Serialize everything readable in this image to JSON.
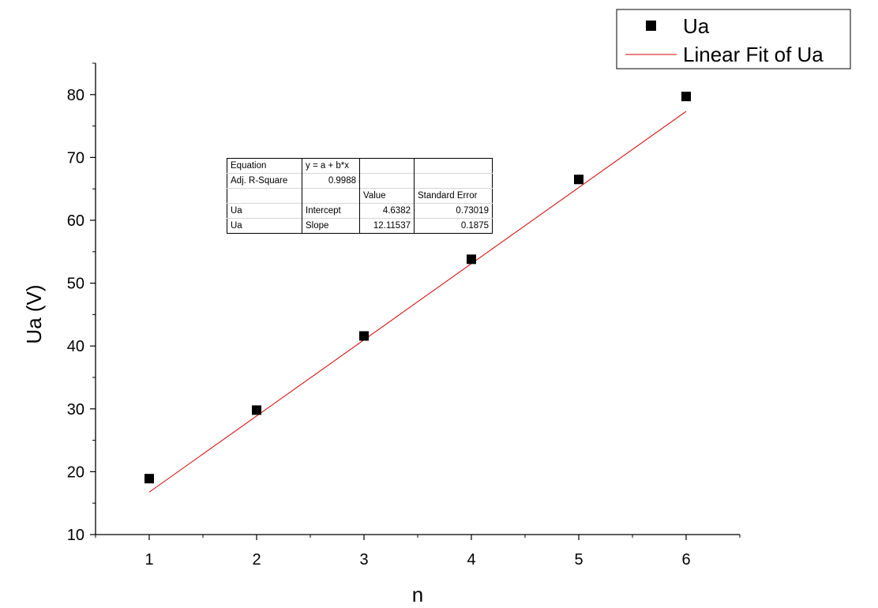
{
  "chart_data": {
    "type": "scatter",
    "x": [
      1,
      2,
      3,
      4,
      5,
      6
    ],
    "series": [
      {
        "name": "Ua",
        "kind": "points",
        "marker": "square",
        "color": "#000000",
        "values": [
          18.9,
          29.8,
          41.6,
          53.8,
          66.5,
          79.7
        ]
      },
      {
        "name": "Linear Fit of Ua",
        "kind": "line",
        "color": "#d40000",
        "intercept": 4.6382,
        "slope": 12.11537
      }
    ],
    "xlabel": "n",
    "ylabel": "Ua (V)",
    "xlim": [
      0.5,
      6.5
    ],
    "ylim": [
      10,
      85
    ],
    "xticks": [
      1,
      2,
      3,
      4,
      5,
      6
    ],
    "yticks": [
      10,
      20,
      30,
      40,
      50,
      60,
      70,
      80
    ],
    "grid": false,
    "legend_position": "top-right"
  },
  "fit_table": {
    "rows": [
      [
        "Equation",
        "y = a + b*x",
        "",
        ""
      ],
      [
        "Adj. R-Square",
        "0.9988",
        "",
        ""
      ],
      [
        "",
        "",
        "Value",
        "Standard Error"
      ],
      [
        "Ua",
        "Intercept",
        "4.6382",
        "0.73019"
      ],
      [
        "Ua",
        "Slope",
        "12.11537",
        "0.1875"
      ]
    ]
  }
}
